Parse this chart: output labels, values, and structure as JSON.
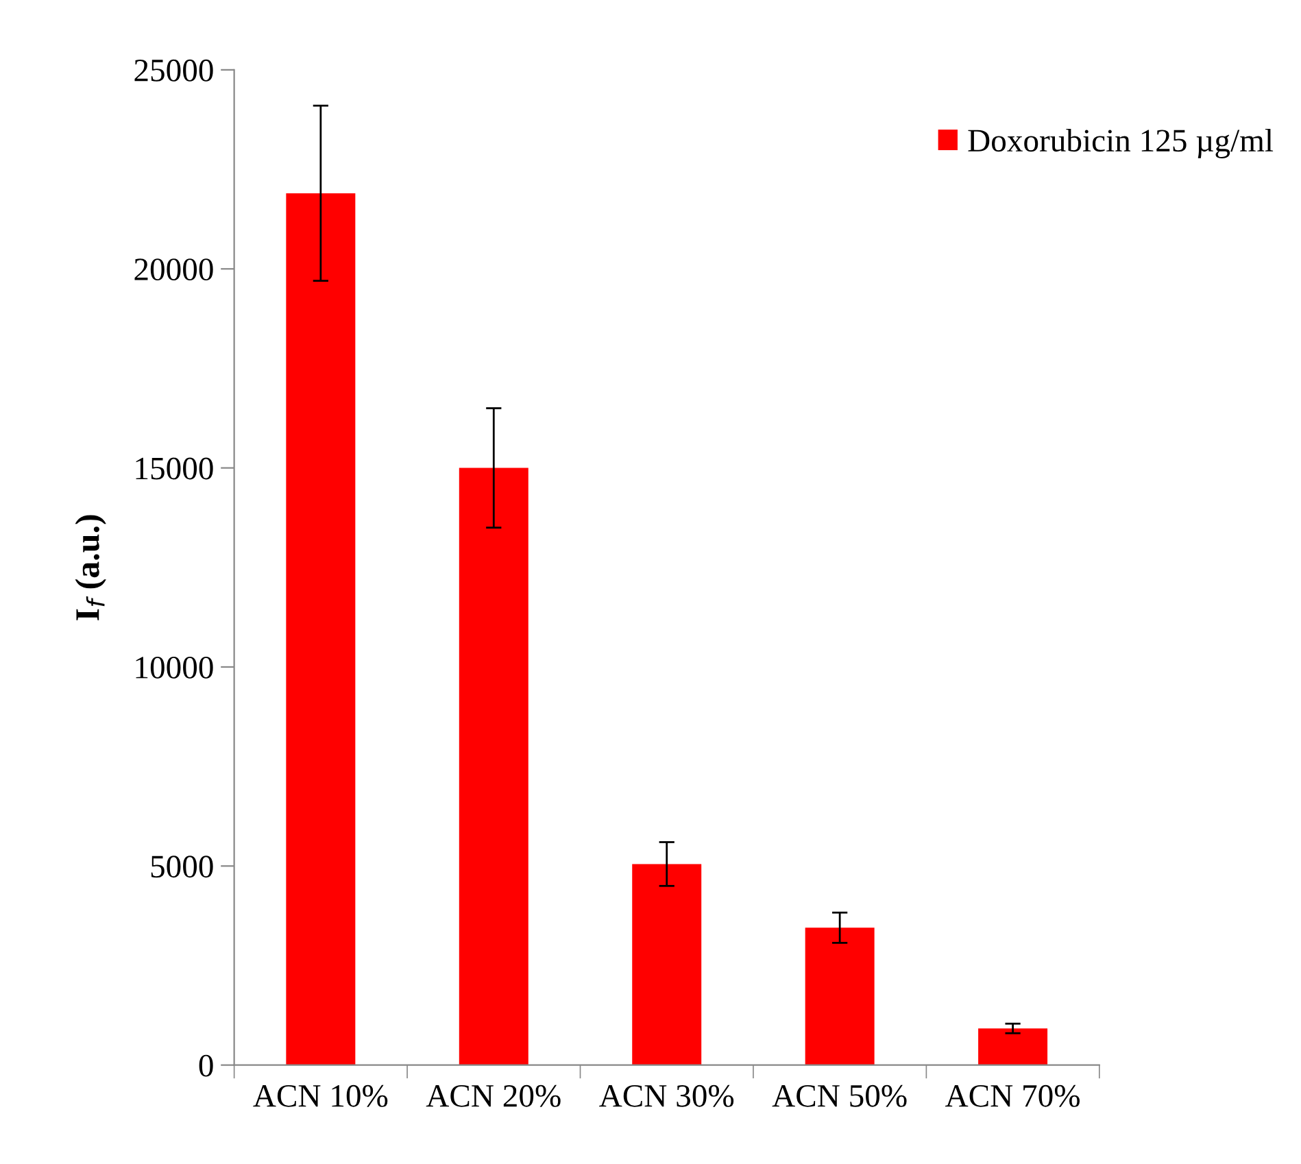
{
  "chart_data": {
    "type": "bar",
    "ylabel": "I$_{f}$ (a.u.)",
    "categories": [
      "ACN 10%",
      "ACN 20%",
      "ACN 30%",
      "ACN 50%",
      "ACN 70%"
    ],
    "series": [
      {
        "name": "Doxorubicin 125 µg/ml",
        "color": "#ff0000",
        "values": [
          21900,
          15000,
          5050,
          3450,
          920
        ],
        "errors": [
          2200,
          1500,
          550,
          380,
          120
        ]
      }
    ],
    "ylim": [
      0,
      25000
    ],
    "yticks": [
      0,
      5000,
      10000,
      15000,
      20000,
      25000
    ],
    "grid": false,
    "legend": "top right"
  }
}
